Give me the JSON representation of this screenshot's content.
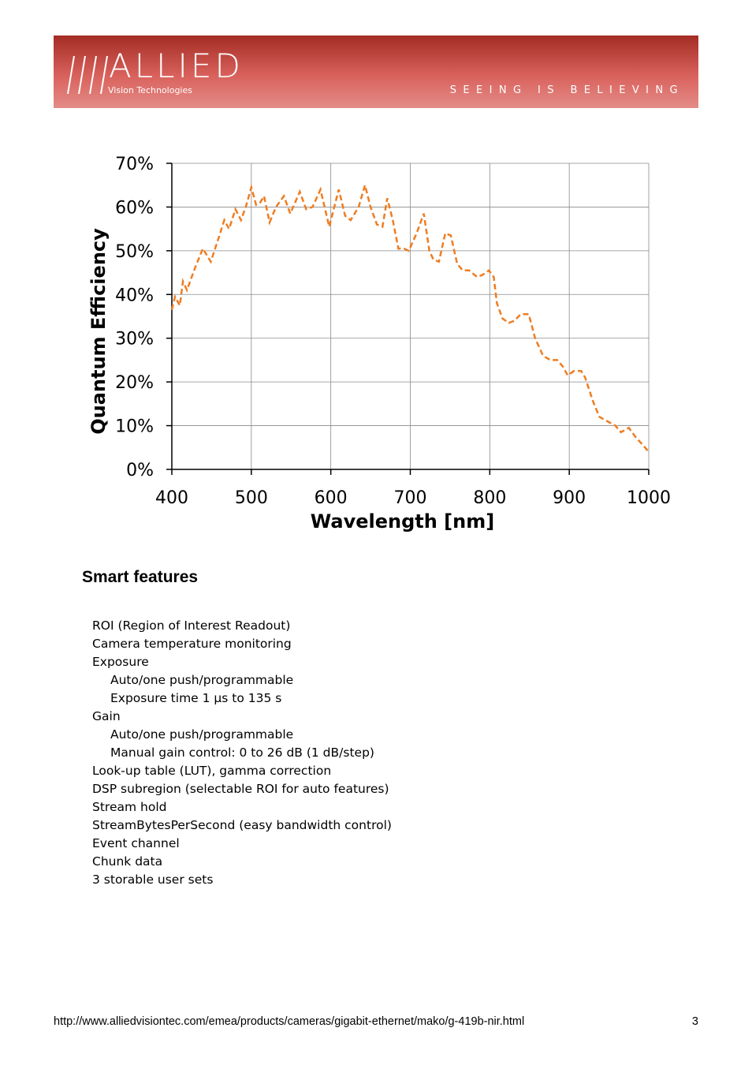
{
  "header": {
    "brand": "ALLIED",
    "subbrand": "Vision Technologies",
    "tagline": "SEEING IS BELIEVING"
  },
  "chart_data": {
    "type": "line",
    "xlabel": "Wavelength [nm]",
    "ylabel": "Quantum Efficiency",
    "x": [
      400,
      404,
      410,
      414,
      419,
      429,
      439,
      449,
      459,
      466,
      472,
      480,
      487,
      493,
      500,
      506,
      511,
      516,
      523,
      531,
      541,
      549,
      561,
      569,
      577,
      587,
      598,
      610,
      618,
      625,
      635,
      643,
      650,
      658,
      665,
      671,
      678,
      685,
      692,
      698,
      708,
      717,
      724,
      729,
      736,
      744,
      751,
      759,
      766,
      774,
      784,
      791,
      799,
      805,
      809,
      816,
      824,
      831,
      839,
      849,
      857,
      867,
      876,
      885,
      892,
      898,
      906,
      915,
      920,
      930,
      938,
      948,
      958,
      965,
      975,
      983,
      993,
      1000
    ],
    "series": [
      {
        "color": "#ee7d22",
        "line_style": "dashed",
        "values": [
          36.5,
          39.5,
          37.5,
          43,
          41,
          46,
          50.5,
          47.5,
          53,
          57,
          55,
          59.5,
          57,
          60,
          64.5,
          60.5,
          61,
          62.5,
          56.5,
          60,
          62.5,
          58.5,
          63.5,
          59.5,
          60,
          64,
          55.5,
          64,
          58,
          57,
          60,
          65,
          60,
          56,
          55.5,
          62,
          57,
          50.5,
          50.5,
          50,
          54,
          58.5,
          50,
          48,
          47.5,
          54,
          53.5,
          47,
          45.5,
          45.5,
          44,
          44.5,
          45.5,
          44,
          38,
          34.5,
          33.5,
          34,
          35.5,
          35.5,
          30,
          26,
          25,
          25,
          23.5,
          21.5,
          22.5,
          22.5,
          21,
          15.5,
          12,
          11,
          10,
          8.5,
          9.5,
          7.5,
          5.5,
          4
        ]
      }
    ],
    "xlim": [
      400,
      1000
    ],
    "xticks": [
      400,
      500,
      600,
      700,
      800,
      900,
      1000
    ],
    "ylim": [
      0,
      70
    ],
    "yticks": [
      {
        "value": 0,
        "label": "0%"
      },
      {
        "value": 10,
        "label": "10%"
      },
      {
        "value": 20,
        "label": "20%"
      },
      {
        "value": 30,
        "label": "30%"
      },
      {
        "value": 40,
        "label": "40%"
      },
      {
        "value": 50,
        "label": "50%"
      },
      {
        "value": 60,
        "label": "60%"
      },
      {
        "value": 70,
        "label": "70%"
      }
    ],
    "grid": true
  },
  "features": {
    "title": "Smart features",
    "items": [
      {
        "text": "ROI (Region of Interest Readout)"
      },
      {
        "text": "Camera temperature monitoring"
      },
      {
        "text": "Exposure",
        "subitems": [
          "Auto/one push/programmable",
          "Exposure time 1 µs to 135 s"
        ]
      },
      {
        "text": "Gain",
        "subitems": [
          "Auto/one push/programmable",
          "Manual gain control: 0 to 26 dB (1 dB/step)"
        ]
      },
      {
        "text": "Look-up table (LUT), gamma correction"
      },
      {
        "text": "DSP subregion (selectable ROI for auto features)"
      },
      {
        "text": "Stream hold"
      },
      {
        "text": "StreamBytesPerSecond (easy bandwidth control)"
      },
      {
        "text": "Event channel"
      },
      {
        "text": "Chunk data"
      },
      {
        "text": "3 storable user sets"
      }
    ]
  },
  "footer": {
    "url": "http://www.alliedvisiontec.com/emea/products/cameras/gigabit-ethernet/mako/g-419b-nir.html",
    "page": 3
  }
}
